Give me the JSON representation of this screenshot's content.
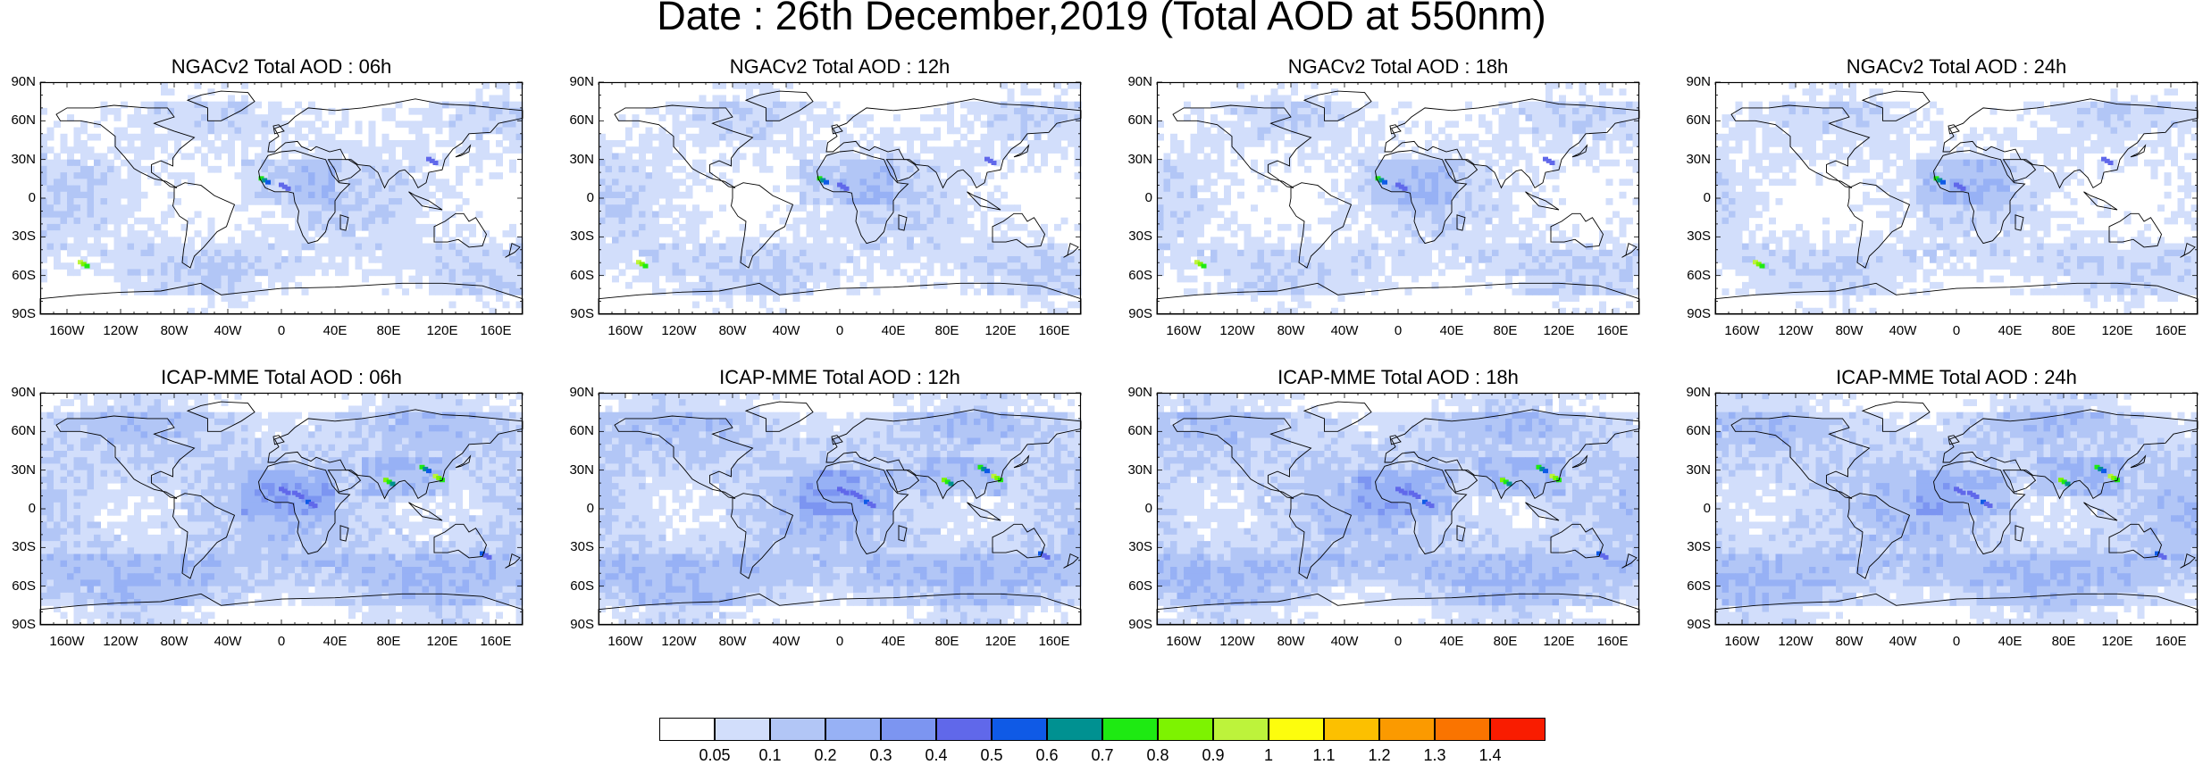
{
  "title": "Date : 26th December,2019 (Total AOD at 550nm)",
  "panels": [
    {
      "title": "NGACv2 Total AOD : 06h"
    },
    {
      "title": "NGACv2 Total AOD : 12h"
    },
    {
      "title": "NGACv2 Total AOD : 18h"
    },
    {
      "title": "NGACv2 Total AOD : 24h"
    },
    {
      "title": "ICAP-MME Total AOD : 06h"
    },
    {
      "title": "ICAP-MME Total AOD : 12h"
    },
    {
      "title": "ICAP-MME Total AOD : 18h"
    },
    {
      "title": "ICAP-MME Total AOD : 24h"
    }
  ],
  "lat_ticks": [
    "90N",
    "60N",
    "30N",
    "0",
    "30S",
    "60S",
    "90S"
  ],
  "lon_ticks": [
    "160W",
    "120W",
    "80W",
    "40W",
    "0",
    "40E",
    "80E",
    "120E",
    "160E"
  ],
  "colorbar": {
    "levels": [
      "0.05",
      "0.1",
      "0.2",
      "0.3",
      "0.4",
      "0.5",
      "0.6",
      "0.7",
      "0.8",
      "0.9",
      "1",
      "1.1",
      "1.2",
      "1.3",
      "1.4"
    ],
    "colors": [
      "#ffffff",
      "#d2defb",
      "#b2c6f6",
      "#97b1f5",
      "#7c95f1",
      "#6068ea",
      "#0f5ae6",
      "#009191",
      "#1eea12",
      "#7df301",
      "#bdf33b",
      "#fdfd0d",
      "#fcc000",
      "#fb9a00",
      "#fa7400",
      "#f91c00"
    ]
  }
}
